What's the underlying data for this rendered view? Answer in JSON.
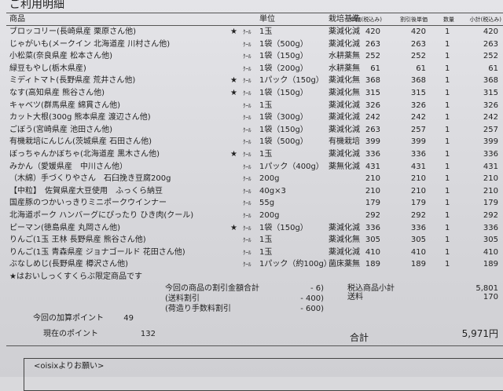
{
  "header": {
    "title": "ご利用明細"
  },
  "table": {
    "columns": [
      "商品",
      "単位",
      "栽培基準",
      "単価(税込み)",
      "割引後単価",
      "数量",
      "小計(税込み)"
    ],
    "rows": [
      [
        "ブロッコリー(長崎県産 栗原さん他)",
        "★",
        "ｸｰﾙ",
        "1玉",
        "薬減化減",
        "420",
        "420",
        "1",
        "420"
      ],
      [
        "じゃがいも(メークイン 北海道産 川村さん他)",
        null,
        "ｸｰﾙ",
        "1袋（500g）",
        "薬減化減",
        "263",
        "263",
        "1",
        "263"
      ],
      [
        "小松菜(奈良県産 松本さん他)",
        null,
        "ｸｰﾙ",
        "1袋（150g）",
        "水耕薬無",
        "252",
        "252",
        "1",
        "252"
      ],
      [
        "緑豆もやし(栃木県産)",
        null,
        "ｸｰﾙ",
        "1袋（200g）",
        "水耕薬無",
        "61",
        "61",
        "1",
        "61"
      ],
      [
        "ミディトマト(長野県産 荒井さん他)",
        "★",
        "ｸｰﾙ",
        "1パック（150g）",
        "薬減化無",
        "368",
        "368",
        "1",
        "368"
      ],
      [
        "なす(高知県産 熊谷さん他)",
        "★",
        "ｸｰﾙ",
        "1袋（150g）",
        "薬減化無",
        "315",
        "315",
        "1",
        "315"
      ],
      [
        "キャベツ(群馬県産 綿貫さん他)",
        null,
        "ｸｰﾙ",
        "1玉",
        "薬減化減",
        "326",
        "326",
        "1",
        "326"
      ],
      [
        "カット大根(300g 熊本県産 渡辺さん他)",
        null,
        "ｸｰﾙ",
        "1袋（300g）",
        "薬減化減",
        "242",
        "242",
        "1",
        "242"
      ],
      [
        "ごぼう(宮崎県産 池田さん他)",
        null,
        "ｸｰﾙ",
        "1袋（150g）",
        "薬減化減",
        "263",
        "257",
        "1",
        "257"
      ],
      [
        "有機栽培にんじん(茨城県産 石田さん他)",
        null,
        "ｸｰﾙ",
        "1袋（500g）",
        "有機栽培",
        "399",
        "399",
        "1",
        "399"
      ],
      [
        "ぼっちゃんかぼちゃ(北海道産 黒木さん他)",
        "★",
        "ｸｰﾙ",
        "1玉",
        "薬減化減",
        "336",
        "336",
        "1",
        "336"
      ],
      [
        "みかん（愛媛県産　中川さん他）",
        null,
        "ｸｰﾙ",
        "1パック（400g）",
        "薬無化減",
        "431",
        "431",
        "1",
        "431"
      ],
      [
        "（木綿）手づくりやさん　石臼挽き豆腐200g",
        null,
        "ｸｰﾙ",
        "200g",
        null,
        "210",
        "210",
        "1",
        "210"
      ],
      [
        "【中粒】　佐賀県産大豆使用　ふっくら納豆",
        null,
        "ｸｰﾙ",
        "40g×3",
        null,
        "210",
        "210",
        "1",
        "210"
      ],
      [
        "国産豚のつかいっきりミニポークウインナー",
        null,
        "ｸｰﾙ",
        "55g",
        null,
        "179",
        "179",
        "1",
        "179"
      ],
      [
        "北海道ポーク ハンバーグにぴったり ひき肉(クール)",
        null,
        "ｸｰﾙ",
        "200g",
        null,
        "292",
        "292",
        "1",
        "292"
      ],
      [
        "ピーマン(徳島県産 丸岡さん他)",
        "★",
        "ｸｰﾙ",
        "1袋（150g）",
        "薬減化減",
        "336",
        "336",
        "1",
        "336"
      ],
      [
        "りんご(1玉 王林 長野県産 熊谷さん他)",
        null,
        "ｸｰﾙ",
        "1玉",
        "薬減化無",
        "305",
        "305",
        "1",
        "305"
      ],
      [
        "りんご(1玉 青森県産 ジョナゴールド 花田さん他)",
        null,
        "ｸｰﾙ",
        "1玉",
        "薬減化減",
        "410",
        "410",
        "1",
        "410"
      ],
      [
        "ぶなしめじ(長野県産 樽沢さん他)",
        null,
        "ｸｰﾙ",
        "1パック（約100g）",
        "菌床薬無",
        "189",
        "189",
        "1",
        "189"
      ]
    ]
  },
  "footnote": "★はおいしっくすくらぶ限定商品です",
  "discounts": [
    [
      "今回の商品の割引金額合計",
      "- 6)"
    ],
    [
      "(送料割引",
      "- 400)"
    ],
    [
      "(荷造り手数料割引",
      "- 600)"
    ]
  ],
  "charges": [
    [
      "税込商品小計",
      "5,801"
    ],
    [
      "送料",
      "170"
    ]
  ],
  "points": [
    [
      "今回の加算ポイント",
      "49"
    ],
    [
      "現在のポイント",
      "132"
    ]
  ],
  "total": {
    "label": "合計",
    "value": "5,971円"
  },
  "notice": {
    "title": "<oisixよりお願い>"
  }
}
